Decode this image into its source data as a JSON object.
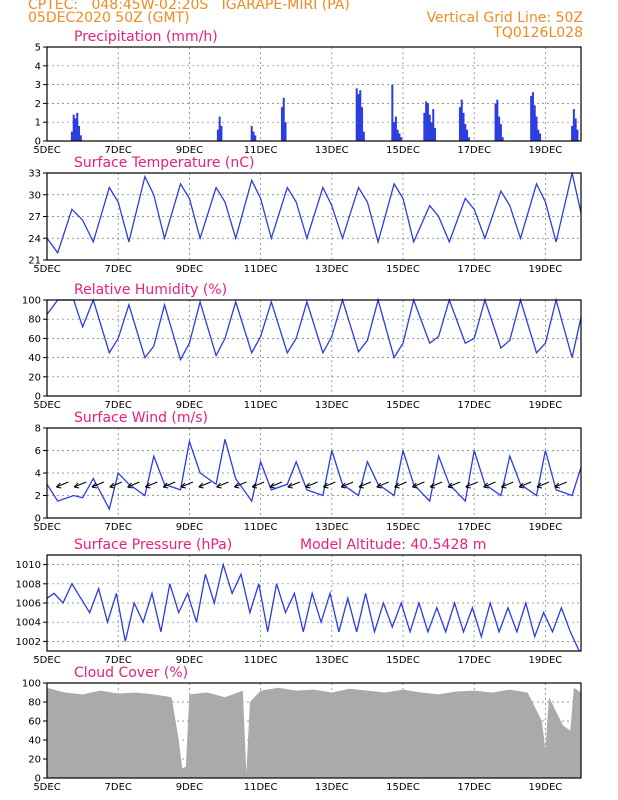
{
  "header": {
    "line1_left": "CPTEC:   048:45W-02:20S   IGARAPE-MIRI (PA)",
    "line2_left": "05DEC2020 50Z (GMT)",
    "line1_right": "Vertical Grid Line: 50Z",
    "line2_right": "TQ0126L028"
  },
  "chart_data": [
    {
      "type": "bar",
      "title": "Precipitation (mm/h)",
      "x_days": [
        5,
        20
      ],
      "xticks": [
        "5DEC",
        "7DEC",
        "9DEC",
        "11DEC",
        "13DEC",
        "15DEC",
        "17DEC",
        "19DEC"
      ],
      "yticks": [
        0,
        1,
        2,
        3,
        4,
        5
      ],
      "ylim": [
        0,
        5
      ],
      "color": "#2b3de0",
      "x": [
        5.7,
        5.75,
        5.8,
        5.85,
        5.9,
        5.95,
        9.8,
        9.85,
        9.9,
        10.75,
        10.8,
        10.85,
        11.6,
        11.65,
        11.7,
        13.7,
        13.75,
        13.8,
        13.85,
        13.9,
        14.7,
        14.75,
        14.8,
        14.85,
        14.9,
        14.95,
        15.6,
        15.65,
        15.7,
        15.75,
        15.8,
        15.85,
        15.9,
        16.6,
        16.65,
        16.7,
        16.75,
        16.8,
        16.85,
        17.6,
        17.65,
        17.7,
        17.75,
        17.8,
        18.6,
        18.65,
        18.7,
        18.75,
        18.8,
        18.85,
        19.75,
        19.8,
        19.85,
        19.9
      ],
      "values": [
        0.5,
        1.4,
        1.2,
        1.5,
        0.8,
        0.3,
        0.6,
        1.3,
        0.8,
        0.8,
        0.5,
        0.3,
        1.8,
        2.3,
        1.0,
        2.8,
        2.5,
        2.7,
        1.8,
        0.5,
        3.0,
        1.0,
        1.3,
        0.6,
        0.4,
        0.2,
        1.5,
        2.1,
        2.0,
        1.4,
        1.0,
        1.7,
        0.7,
        1.8,
        2.2,
        1.5,
        0.9,
        0.6,
        0.2,
        2.0,
        2.2,
        1.3,
        0.9,
        0.2,
        2.4,
        2.6,
        1.9,
        1.3,
        0.6,
        0.4,
        0.8,
        1.7,
        1.2,
        0.6
      ]
    },
    {
      "type": "line",
      "title": "Surface Temperature (nC)",
      "x_days": [
        5,
        20
      ],
      "xticks": [
        "5DEC",
        "7DEC",
        "9DEC",
        "11DEC",
        "13DEC",
        "15DEC",
        "17DEC",
        "19DEC"
      ],
      "yticks": [
        21,
        24,
        27,
        30,
        33
      ],
      "ylim": [
        21,
        33
      ],
      "color": "#2b3de0",
      "x": [
        5,
        5.3,
        5.7,
        6.0,
        6.3,
        6.75,
        7.0,
        7.3,
        7.75,
        8.0,
        8.3,
        8.75,
        9.0,
        9.3,
        9.75,
        10.0,
        10.3,
        10.75,
        11.0,
        11.3,
        11.75,
        12.0,
        12.3,
        12.75,
        13.0,
        13.3,
        13.75,
        14.0,
        14.3,
        14.75,
        15.0,
        15.3,
        15.75,
        16.0,
        16.3,
        16.75,
        17.0,
        17.3,
        17.75,
        18.0,
        18.3,
        18.75,
        19.0,
        19.3,
        19.75,
        20.0
      ],
      "values": [
        24.0,
        22.0,
        28.0,
        26.5,
        23.5,
        31.0,
        29.0,
        23.5,
        32.5,
        30.0,
        24.0,
        31.5,
        29.5,
        24.0,
        31.0,
        29.0,
        24.0,
        32.0,
        29.5,
        24.0,
        31.0,
        29.0,
        24.0,
        31.0,
        28.5,
        24.0,
        31.0,
        29.0,
        23.5,
        31.5,
        29.5,
        23.5,
        28.5,
        27.0,
        23.5,
        29.5,
        28.0,
        24.0,
        30.5,
        28.5,
        24.0,
        31.5,
        29.0,
        23.5,
        33.0,
        27.5
      ]
    },
    {
      "type": "line",
      "title": "Relative Humidity (%)",
      "x_days": [
        5,
        20
      ],
      "xticks": [
        "5DEC",
        "7DEC",
        "9DEC",
        "11DEC",
        "13DEC",
        "15DEC",
        "17DEC",
        "19DEC"
      ],
      "yticks": [
        0,
        20,
        40,
        60,
        80,
        100
      ],
      "ylim": [
        0,
        100
      ],
      "color": "#2b3de0",
      "x": [
        5,
        5.3,
        5.75,
        6.0,
        6.3,
        6.75,
        7.0,
        7.3,
        7.75,
        8.0,
        8.3,
        8.75,
        9.0,
        9.3,
        9.75,
        10.0,
        10.3,
        10.75,
        11.0,
        11.3,
        11.75,
        12.0,
        12.3,
        12.75,
        13.0,
        13.3,
        13.75,
        14.0,
        14.3,
        14.75,
        15.0,
        15.3,
        15.75,
        16.0,
        16.3,
        16.75,
        17.0,
        17.3,
        17.75,
        18.0,
        18.3,
        18.75,
        19.0,
        19.3,
        19.75,
        20.0
      ],
      "values": [
        85,
        100,
        100,
        72,
        100,
        45,
        60,
        95,
        40,
        52,
        95,
        38,
        55,
        98,
        42,
        60,
        98,
        45,
        62,
        98,
        45,
        60,
        98,
        45,
        62,
        100,
        46,
        58,
        100,
        40,
        55,
        100,
        55,
        62,
        100,
        55,
        60,
        100,
        50,
        58,
        100,
        45,
        55,
        100,
        40,
        82
      ]
    },
    {
      "type": "line",
      "title": "Surface Wind (m/s)",
      "x_days": [
        5,
        20
      ],
      "xticks": [
        "5DEC",
        "7DEC",
        "9DEC",
        "11DEC",
        "13DEC",
        "15DEC",
        "17DEC",
        "19DEC"
      ],
      "yticks": [
        0,
        2,
        4,
        6,
        8
      ],
      "ylim": [
        0,
        8
      ],
      "color": "#2b3de0",
      "x": [
        5,
        5.3,
        5.75,
        6.0,
        6.3,
        6.75,
        7.0,
        7.3,
        7.75,
        8.0,
        8.3,
        8.75,
        9.0,
        9.3,
        9.75,
        10.0,
        10.3,
        10.75,
        11.0,
        11.3,
        11.75,
        12.0,
        12.3,
        12.75,
        13.0,
        13.3,
        13.75,
        14.0,
        14.3,
        14.75,
        15.0,
        15.3,
        15.75,
        16.0,
        16.3,
        16.75,
        17.0,
        17.3,
        17.75,
        18.0,
        18.3,
        18.75,
        19.0,
        19.3,
        19.75,
        20.0
      ],
      "values": [
        3.0,
        1.5,
        2.0,
        1.8,
        3.5,
        0.8,
        4.0,
        3.0,
        2.0,
        5.5,
        3.0,
        2.5,
        6.8,
        4.0,
        3.0,
        7.0,
        3.5,
        1.5,
        5.0,
        2.5,
        3.0,
        5.0,
        2.5,
        2.0,
        6.0,
        3.0,
        2.0,
        5.0,
        3.0,
        2.0,
        6.0,
        3.0,
        1.5,
        5.5,
        3.0,
        1.5,
        6.0,
        3.0,
        2.0,
        5.5,
        3.0,
        2.0,
        6.0,
        2.5,
        2.0,
        4.5
      ]
    },
    {
      "type": "line",
      "title": "Surface Pressure (hPa)",
      "subtitle": "Model Altitude: 40.5428 m",
      "x_days": [
        5,
        20
      ],
      "xticks": [
        "5DEC",
        "7DEC",
        "9DEC",
        "11DEC",
        "13DEC",
        "15DEC",
        "17DEC",
        "19DEC"
      ],
      "yticks": [
        1002,
        1004,
        1006,
        1008,
        1010
      ],
      "ylim": [
        1001,
        1011
      ],
      "color": "#2b3de0",
      "x": [
        5,
        5.2,
        5.45,
        5.7,
        5.95,
        6.2,
        6.45,
        6.7,
        6.95,
        7.2,
        7.45,
        7.7,
        7.95,
        8.2,
        8.45,
        8.7,
        8.95,
        9.2,
        9.45,
        9.7,
        9.95,
        10.2,
        10.45,
        10.7,
        10.95,
        11.2,
        11.45,
        11.7,
        11.95,
        12.2,
        12.45,
        12.7,
        12.95,
        13.2,
        13.45,
        13.7,
        13.95,
        14.2,
        14.45,
        14.7,
        14.95,
        15.2,
        15.45,
        15.7,
        15.95,
        16.2,
        16.45,
        16.7,
        16.95,
        17.2,
        17.45,
        17.7,
        17.95,
        18.2,
        18.45,
        18.7,
        18.95,
        19.2,
        19.45,
        19.7,
        19.95
      ],
      "values": [
        1006.5,
        1007.0,
        1006.0,
        1008.0,
        1006.5,
        1005.0,
        1007.5,
        1004.0,
        1007.0,
        1002.0,
        1006.0,
        1004.0,
        1007.0,
        1003.0,
        1008.0,
        1005.0,
        1007.0,
        1004.0,
        1009.0,
        1006.0,
        1010.0,
        1007.0,
        1009.0,
        1005.0,
        1008.0,
        1003.0,
        1008.0,
        1005.0,
        1007.0,
        1003.0,
        1007.0,
        1004.0,
        1007.0,
        1003.0,
        1006.5,
        1003.0,
        1007.0,
        1003.0,
        1006.0,
        1003.5,
        1006.0,
        1003.0,
        1006.0,
        1003.0,
        1005.5,
        1003.0,
        1006.0,
        1003.0,
        1005.5,
        1002.5,
        1006.0,
        1003.0,
        1005.5,
        1003.0,
        1006.0,
        1002.5,
        1005.0,
        1003.0,
        1005.5,
        1003.0,
        1001.0
      ]
    },
    {
      "type": "area",
      "title": "Cloud Cover (%)",
      "x_days": [
        5,
        20
      ],
      "xticks": [
        "5DEC",
        "7DEC",
        "9DEC",
        "11DEC",
        "13DEC",
        "15DEC",
        "17DEC",
        "19DEC"
      ],
      "yticks": [
        0,
        20,
        40,
        60,
        80,
        100
      ],
      "ylim": [
        0,
        100
      ],
      "color": "#aaaaaa",
      "x": [
        5,
        5.5,
        6.0,
        6.5,
        7.0,
        7.5,
        8.0,
        8.5,
        8.7,
        8.8,
        8.9,
        9.0,
        9.5,
        10.0,
        10.5,
        10.6,
        10.7,
        11.0,
        11.5,
        12.0,
        12.5,
        13.0,
        13.5,
        14.0,
        14.5,
        15.0,
        15.5,
        16.0,
        16.5,
        17.0,
        17.5,
        18.0,
        18.5,
        18.9,
        19.0,
        19.1,
        19.5,
        19.7,
        19.8,
        20.0
      ],
      "values": [
        95,
        90,
        88,
        92,
        89,
        90,
        88,
        85,
        40,
        10,
        12,
        88,
        90,
        85,
        92,
        5,
        80,
        92,
        95,
        92,
        93,
        90,
        94,
        92,
        90,
        93,
        90,
        88,
        91,
        92,
        90,
        93,
        90,
        60,
        30,
        85,
        55,
        50,
        95,
        90
      ]
    }
  ]
}
